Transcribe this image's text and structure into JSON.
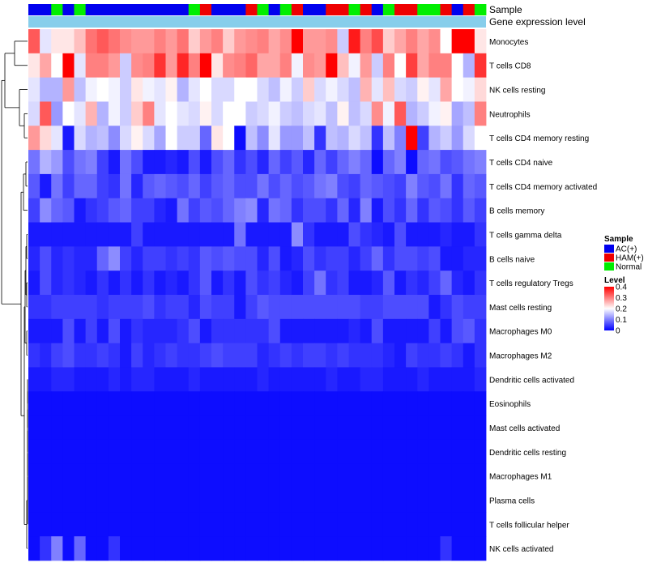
{
  "chart_data": {
    "type": "heatmap",
    "annotation_labels": {
      "sample": "Sample",
      "gene_expression": "Gene expression level"
    },
    "sample_groups": [
      "AC(+)",
      "AC(+)",
      "Normal",
      "AC(+)",
      "Normal",
      "AC(+)",
      "AC(+)",
      "AC(+)",
      "AC(+)",
      "AC(+)",
      "AC(+)",
      "AC(+)",
      "AC(+)",
      "AC(+)",
      "Normal",
      "HAM(+)",
      "AC(+)",
      "AC(+)",
      "AC(+)",
      "HAM(+)",
      "Normal",
      "AC(+)",
      "Normal",
      "HAM(+)",
      "AC(+)",
      "AC(+)",
      "HAM(+)",
      "HAM(+)",
      "Normal",
      "HAM(+)",
      "AC(+)",
      "Normal",
      "HAM(+)",
      "HAM(+)",
      "Normal",
      "Normal",
      "HAM(+)",
      "AC(+)",
      "HAM(+)",
      "Normal"
    ],
    "rows": [
      {
        "label": "Monocytes",
        "values": [
          0.33,
          0.18,
          0.22,
          0.22,
          0.25,
          0.31,
          0.33,
          0.31,
          0.29,
          0.28,
          0.28,
          0.3,
          0.28,
          0.31,
          0.24,
          0.28,
          0.3,
          0.24,
          0.28,
          0.29,
          0.3,
          0.27,
          0.29,
          0.42,
          0.28,
          0.28,
          0.29,
          0.16,
          0.38,
          0.3,
          0.34,
          0.24,
          0.27,
          0.3,
          0.27,
          0.29,
          0.2,
          0.45,
          0.45,
          0.22
        ]
      },
      {
        "label": "T cells CD8",
        "values": [
          0.22,
          0.27,
          0.2,
          0.42,
          0.18,
          0.3,
          0.3,
          0.28,
          0.16,
          0.29,
          0.3,
          0.36,
          0.28,
          0.37,
          0.3,
          0.42,
          0.22,
          0.29,
          0.3,
          0.32,
          0.27,
          0.27,
          0.3,
          0.19,
          0.29,
          0.28,
          0.42,
          0.25,
          0.19,
          0.28,
          0.16,
          0.3,
          0.2,
          0.35,
          0.27,
          0.3,
          0.3,
          0.2,
          0.14,
          0.36
        ]
      },
      {
        "label": "NK cells resting",
        "values": [
          0.18,
          0.14,
          0.14,
          0.28,
          0.15,
          0.19,
          0.2,
          0.19,
          0.16,
          0.22,
          0.19,
          0.18,
          0.21,
          0.14,
          0.18,
          0.2,
          0.17,
          0.17,
          0.2,
          0.2,
          0.17,
          0.15,
          0.19,
          0.16,
          0.24,
          0.17,
          0.19,
          0.17,
          0.15,
          0.26,
          0.18,
          0.25,
          0.17,
          0.16,
          0.21,
          0.18,
          0.27,
          0.2,
          0.19,
          0.23
        ]
      },
      {
        "label": "Neutrophils",
        "values": [
          0.17,
          0.33,
          0.12,
          0.2,
          0.18,
          0.26,
          0.14,
          0.19,
          0.16,
          0.24,
          0.3,
          0.18,
          0.2,
          0.18,
          0.17,
          0.21,
          0.17,
          0.2,
          0.2,
          0.16,
          0.17,
          0.19,
          0.16,
          0.15,
          0.17,
          0.18,
          0.15,
          0.21,
          0.15,
          0.17,
          0.29,
          0.19,
          0.33,
          0.14,
          0.16,
          0.19,
          0.21,
          0.13,
          0.15,
          0.3
        ]
      },
      {
        "label": "T cells CD4 memory resting",
        "values": [
          0.28,
          0.23,
          0.18,
          0.02,
          0.17,
          0.14,
          0.15,
          0.11,
          0.17,
          0.21,
          0.17,
          0.13,
          0.2,
          0.16,
          0.16,
          0.08,
          0.22,
          0.2,
          0.01,
          0.15,
          0.11,
          0.18,
          0.12,
          0.12,
          0.15,
          0.04,
          0.15,
          0.14,
          0.17,
          0.15,
          0.04,
          0.15,
          0.1,
          0.42,
          0.05,
          0.14,
          0.16,
          0.12,
          0.17,
          0.2
        ]
      },
      {
        "label": "T cells CD4 naive",
        "values": [
          0.09,
          0.14,
          0.12,
          0.06,
          0.09,
          0.1,
          0.05,
          0.02,
          0.09,
          0.06,
          0.02,
          0.02,
          0.03,
          0.02,
          0.06,
          0.02,
          0.06,
          0.08,
          0.04,
          0.06,
          0.03,
          0.08,
          0.05,
          0.07,
          0.03,
          0.08,
          0.05,
          0.08,
          0.1,
          0.08,
          0.01,
          0.08,
          0.1,
          0.01,
          0.08,
          0.09,
          0.06,
          0.07,
          0.09,
          0.1
        ]
      },
      {
        "label": "T cells CD4 memory activated",
        "values": [
          0.07,
          0.02,
          0.09,
          0.05,
          0.08,
          0.08,
          0.05,
          0.04,
          0.09,
          0.03,
          0.07,
          0.08,
          0.07,
          0.06,
          0.08,
          0.05,
          0.07,
          0.08,
          0.06,
          0.06,
          0.09,
          0.06,
          0.08,
          0.06,
          0.07,
          0.09,
          0.1,
          0.06,
          0.05,
          0.08,
          0.07,
          0.06,
          0.05,
          0.1,
          0.07,
          0.06,
          0.09,
          0.04,
          0.08,
          0.07
        ]
      },
      {
        "label": "B cells memory",
        "values": [
          0.05,
          0.11,
          0.08,
          0.07,
          0.02,
          0.04,
          0.05,
          0.07,
          0.08,
          0.05,
          0.05,
          0.03,
          0.02,
          0.09,
          0.05,
          0.07,
          0.06,
          0.08,
          0.1,
          0.11,
          0.03,
          0.09,
          0.08,
          0.04,
          0.06,
          0.06,
          0.04,
          0.08,
          0.03,
          0.1,
          0.02,
          0.06,
          0.04,
          0.08,
          0.04,
          0.07,
          0.06,
          0.04,
          0.07,
          0.05
        ]
      },
      {
        "label": "T cells gamma delta",
        "values": [
          0.02,
          0.02,
          0.02,
          0.02,
          0.02,
          0.02,
          0.02,
          0.02,
          0.02,
          0.05,
          0.02,
          0.02,
          0.02,
          0.02,
          0.02,
          0.02,
          0.02,
          0.02,
          0.09,
          0.02,
          0.02,
          0.02,
          0.02,
          0.11,
          0.04,
          0.02,
          0.02,
          0.02,
          0.06,
          0.04,
          0.03,
          0.02,
          0.06,
          0.02,
          0.02,
          0.02,
          0.03,
          0.02,
          0.02,
          0.04
        ]
      },
      {
        "label": "B cells naive",
        "values": [
          0.03,
          0.06,
          0.03,
          0.04,
          0.03,
          0.03,
          0.08,
          0.11,
          0.05,
          0.03,
          0.05,
          0.05,
          0.04,
          0.05,
          0.04,
          0.07,
          0.06,
          0.07,
          0.06,
          0.06,
          0.03,
          0.06,
          0.02,
          0.03,
          0.06,
          0.04,
          0.05,
          0.05,
          0.03,
          0.05,
          0.08,
          0.04,
          0.06,
          0.06,
          0.05,
          0.06,
          0.02,
          0.02,
          0.03,
          0.03
        ]
      },
      {
        "label": "T cells regulatory  Tregs",
        "values": [
          0.02,
          0.06,
          0.03,
          0.04,
          0.03,
          0.02,
          0.04,
          0.02,
          0.04,
          0.02,
          0.04,
          0.02,
          0.03,
          0.02,
          0.04,
          0.07,
          0.02,
          0.04,
          0.02,
          0.06,
          0.04,
          0.05,
          0.03,
          0.02,
          0.05,
          0.09,
          0.04,
          0.05,
          0.02,
          0.02,
          0.03,
          0.07,
          0.02,
          0.04,
          0.03,
          0.05,
          0.08,
          0.03,
          0.02,
          0.04
        ]
      },
      {
        "label": "Mast cells resting",
        "values": [
          0.04,
          0.04,
          0.05,
          0.05,
          0.05,
          0.05,
          0.04,
          0.05,
          0.05,
          0.05,
          0.06,
          0.04,
          0.05,
          0.05,
          0.03,
          0.06,
          0.05,
          0.05,
          0.02,
          0.05,
          0.07,
          0.06,
          0.06,
          0.06,
          0.06,
          0.06,
          0.06,
          0.06,
          0.06,
          0.05,
          0.05,
          0.06,
          0.06,
          0.06,
          0.06,
          0.02,
          0.04,
          0.06,
          0.05,
          0.05
        ]
      },
      {
        "label": "Macrophages M0",
        "values": [
          0.02,
          0.02,
          0.02,
          0.06,
          0.02,
          0.05,
          0.02,
          0.06,
          0.02,
          0.04,
          0.03,
          0.03,
          0.03,
          0.04,
          0.06,
          0.02,
          0.04,
          0.04,
          0.04,
          0.04,
          0.04,
          0.06,
          0.02,
          0.02,
          0.02,
          0.02,
          0.02,
          0.02,
          0.03,
          0.02,
          0.06,
          0.02,
          0.02,
          0.02,
          0.02,
          0.05,
          0.02,
          0.06,
          0.07,
          0.04
        ]
      },
      {
        "label": "Macrophages M2",
        "values": [
          0.04,
          0.03,
          0.05,
          0.06,
          0.04,
          0.04,
          0.05,
          0.04,
          0.02,
          0.05,
          0.03,
          0.04,
          0.05,
          0.04,
          0.04,
          0.05,
          0.06,
          0.05,
          0.05,
          0.05,
          0.03,
          0.04,
          0.05,
          0.04,
          0.05,
          0.05,
          0.04,
          0.05,
          0.04,
          0.04,
          0.04,
          0.03,
          0.02,
          0.05,
          0.04,
          0.04,
          0.05,
          0.04,
          0.02,
          0.04
        ]
      },
      {
        "label": "Dendritic cells activated",
        "values": [
          0.02,
          0.02,
          0.03,
          0.03,
          0.02,
          0.02,
          0.02,
          0.03,
          0.02,
          0.03,
          0.03,
          0.02,
          0.02,
          0.02,
          0.03,
          0.02,
          0.02,
          0.02,
          0.02,
          0.02,
          0.03,
          0.02,
          0.02,
          0.02,
          0.02,
          0.02,
          0.03,
          0.02,
          0.02,
          0.03,
          0.03,
          0.02,
          0.02,
          0.02,
          0.03,
          0.02,
          0.02,
          0.02,
          0.02,
          0.03
        ]
      },
      {
        "label": "Eosinophils",
        "values": [
          0.01,
          0.01,
          0.01,
          0.01,
          0.01,
          0.01,
          0.01,
          0.01,
          0.01,
          0.01,
          0.01,
          0.01,
          0.01,
          0.01,
          0.01,
          0.01,
          0.01,
          0.01,
          0.01,
          0.01,
          0.01,
          0.01,
          0.01,
          0.01,
          0.01,
          0.01,
          0.01,
          0.01,
          0.01,
          0.01,
          0.01,
          0.01,
          0.01,
          0.01,
          0.01,
          0.01,
          0.01,
          0.01,
          0.01,
          0.01
        ]
      },
      {
        "label": "Mast cells activated",
        "values": [
          0.01,
          0.01,
          0.01,
          0.01,
          0.01,
          0.01,
          0.01,
          0.01,
          0.01,
          0.01,
          0.01,
          0.01,
          0.01,
          0.01,
          0.01,
          0.01,
          0.01,
          0.01,
          0.01,
          0.01,
          0.01,
          0.01,
          0.01,
          0.01,
          0.01,
          0.01,
          0.01,
          0.01,
          0.01,
          0.01,
          0.01,
          0.01,
          0.01,
          0.01,
          0.01,
          0.01,
          0.01,
          0.01,
          0.01,
          0.01
        ]
      },
      {
        "label": "Dendritic cells resting",
        "values": [
          0.01,
          0.01,
          0.01,
          0.01,
          0.01,
          0.01,
          0.01,
          0.01,
          0.01,
          0.01,
          0.01,
          0.01,
          0.01,
          0.01,
          0.01,
          0.01,
          0.01,
          0.01,
          0.01,
          0.01,
          0.01,
          0.01,
          0.01,
          0.01,
          0.01,
          0.01,
          0.01,
          0.01,
          0.01,
          0.01,
          0.01,
          0.01,
          0.01,
          0.01,
          0.01,
          0.01,
          0.01,
          0.01,
          0.01,
          0.01
        ]
      },
      {
        "label": "Macrophages M1",
        "values": [
          0.01,
          0.01,
          0.01,
          0.01,
          0.01,
          0.01,
          0.01,
          0.01,
          0.01,
          0.01,
          0.01,
          0.01,
          0.01,
          0.01,
          0.01,
          0.01,
          0.01,
          0.01,
          0.01,
          0.01,
          0.01,
          0.01,
          0.01,
          0.01,
          0.01,
          0.01,
          0.01,
          0.01,
          0.01,
          0.01,
          0.01,
          0.01,
          0.01,
          0.01,
          0.01,
          0.01,
          0.01,
          0.01,
          0.01,
          0.01
        ]
      },
      {
        "label": "Plasma cells",
        "values": [
          0.01,
          0.01,
          0.01,
          0.01,
          0.01,
          0.01,
          0.01,
          0.01,
          0.01,
          0.01,
          0.01,
          0.01,
          0.01,
          0.01,
          0.01,
          0.01,
          0.01,
          0.01,
          0.01,
          0.01,
          0.01,
          0.01,
          0.01,
          0.01,
          0.01,
          0.01,
          0.01,
          0.01,
          0.01,
          0.01,
          0.01,
          0.01,
          0.01,
          0.01,
          0.01,
          0.01,
          0.01,
          0.01,
          0.01,
          0.01
        ]
      },
      {
        "label": "T cells follicular helper",
        "values": [
          0.01,
          0.01,
          0.01,
          0.01,
          0.01,
          0.01,
          0.01,
          0.01,
          0.01,
          0.01,
          0.01,
          0.01,
          0.01,
          0.01,
          0.01,
          0.01,
          0.01,
          0.01,
          0.01,
          0.01,
          0.01,
          0.01,
          0.01,
          0.01,
          0.01,
          0.01,
          0.01,
          0.01,
          0.01,
          0.01,
          0.01,
          0.01,
          0.01,
          0.01,
          0.01,
          0.01,
          0.01,
          0.01,
          0.01,
          0.01
        ]
      },
      {
        "label": "NK cells activated",
        "values": [
          0.01,
          0.04,
          0.1,
          0.01,
          0.08,
          0.01,
          0.01,
          0.04,
          0.01,
          0.01,
          0.01,
          0.01,
          0.01,
          0.01,
          0.01,
          0.01,
          0.01,
          0.01,
          0.01,
          0.01,
          0.01,
          0.01,
          0.01,
          0.01,
          0.01,
          0.01,
          0.01,
          0.01,
          0.01,
          0.01,
          0.01,
          0.01,
          0.01,
          0.01,
          0.01,
          0.01,
          0.04,
          0.01,
          0.01,
          0.01
        ]
      }
    ],
    "legend": {
      "sample_title": "Sample",
      "sample_entries": [
        {
          "label": "AC(+)",
          "color": "#0000ee"
        },
        {
          "label": "HAM(+)",
          "color": "#ee0000"
        },
        {
          "label": "Normal",
          "color": "#00ee00"
        }
      ],
      "level_title": "Level",
      "level_ticks": [
        "0.4",
        "0.3",
        "0.2",
        "0.1",
        "0"
      ],
      "color_range": [
        0,
        0.4
      ],
      "colors": {
        "low": "#0000ff",
        "mid": "#ffffff",
        "high": "#ff0000",
        "mid_value": 0.2
      }
    },
    "gene_expression_color": "#87ceeb"
  }
}
